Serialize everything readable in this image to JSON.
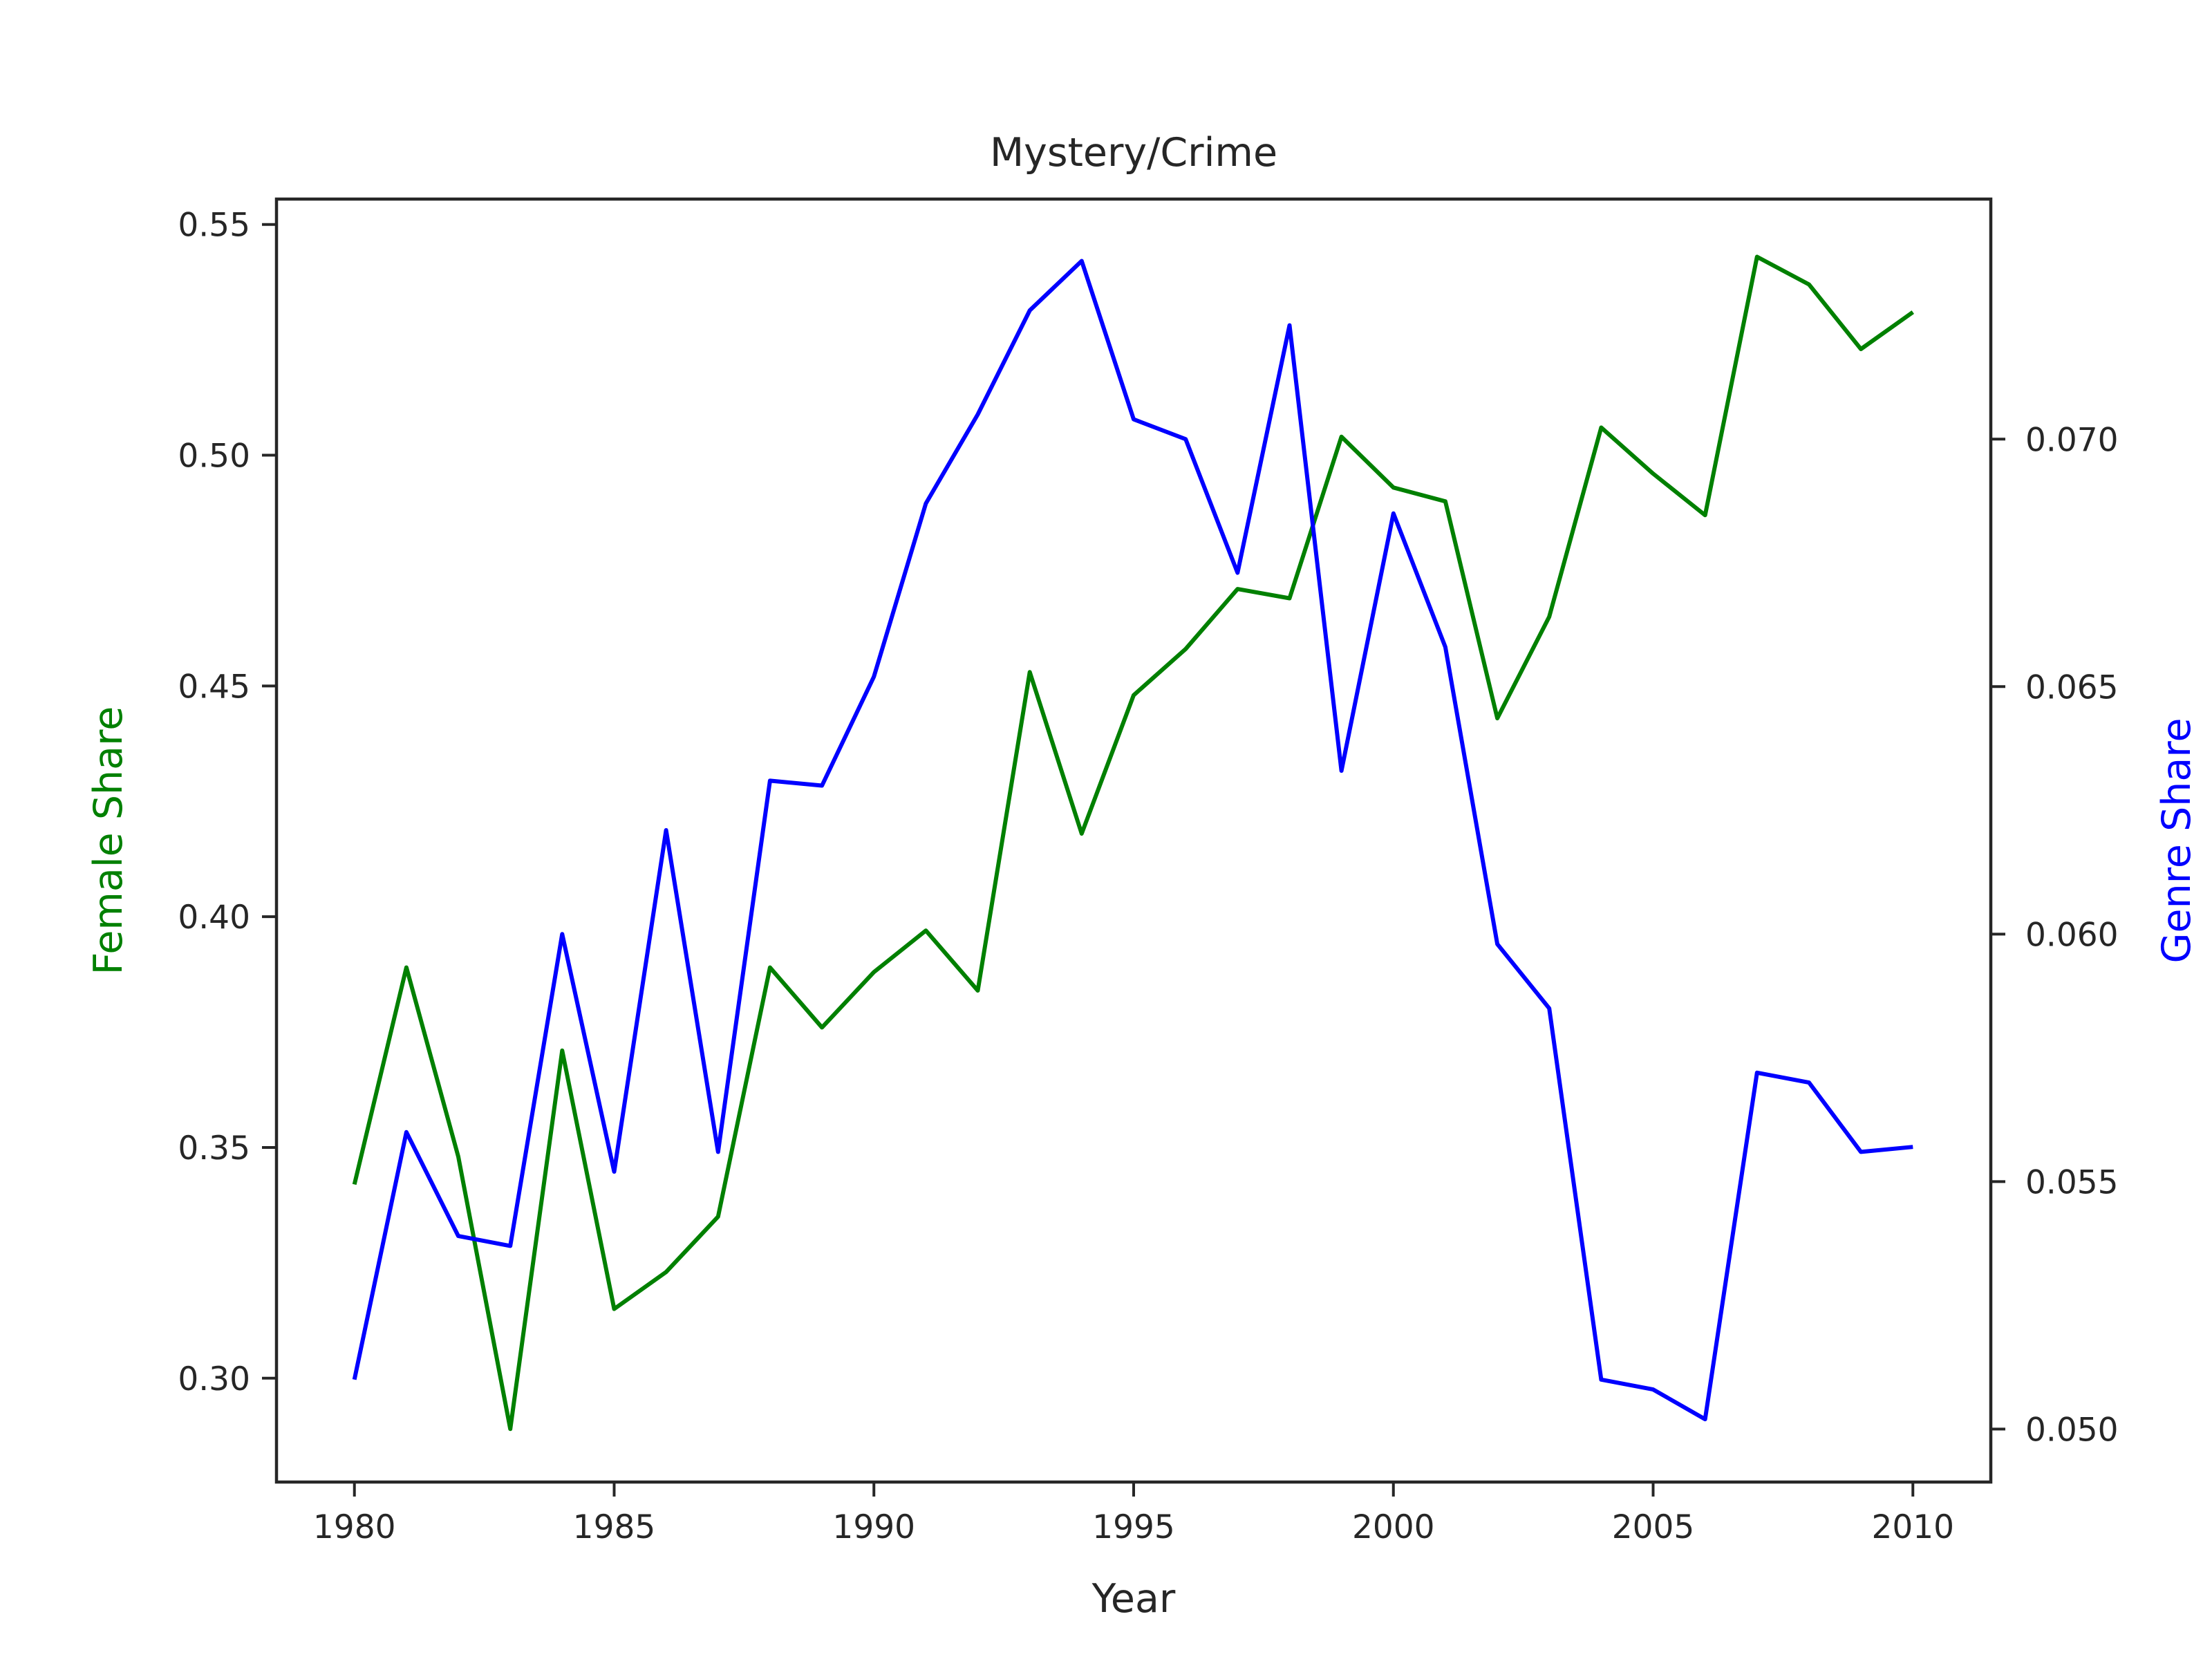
{
  "chart_data": {
    "type": "line",
    "title": "Mystery/Crime",
    "xlabel": "Year",
    "ylabel_left": "Female Share",
    "ylabel_right": "Genre Share",
    "xlim": [
      1978.5,
      2011.5
    ],
    "ylim_left": [
      0.2775,
      0.5555
    ],
    "ylim_right": [
      0.04893,
      0.07485
    ],
    "x_ticks": [
      1980,
      1985,
      1990,
      1995,
      2000,
      2005,
      2010
    ],
    "x_tick_labels": [
      "1980",
      "1985",
      "1990",
      "1995",
      "2000",
      "2005",
      "2010"
    ],
    "y_left_ticks": [
      0.3,
      0.35,
      0.4,
      0.45,
      0.5,
      0.55
    ],
    "y_left_tick_labels": [
      "0.30",
      "0.35",
      "0.40",
      "0.45",
      "0.50",
      "0.55"
    ],
    "y_right_ticks": [
      0.05,
      0.055,
      0.06,
      0.065,
      0.07
    ],
    "y_right_tick_labels": [
      "0.050",
      "0.055",
      "0.060",
      "0.065",
      "0.070"
    ],
    "grid": false,
    "x": [
      1980,
      1981,
      1982,
      1983,
      1984,
      1985,
      1986,
      1987,
      1988,
      1989,
      1990,
      1991,
      1992,
      1993,
      1994,
      1995,
      1996,
      1997,
      1998,
      1999,
      2000,
      2001,
      2002,
      2003,
      2004,
      2005,
      2006,
      2007,
      2008,
      2009,
      2010
    ],
    "series": [
      {
        "axis": "left",
        "color": "#008000",
        "values": [
          0.342,
          0.389,
          0.348,
          0.289,
          0.371,
          0.315,
          0.323,
          0.335,
          0.389,
          0.376,
          0.388,
          0.397,
          0.384,
          0.453,
          0.418,
          0.448,
          0.458,
          0.471,
          0.469,
          0.504,
          0.493,
          0.49,
          0.443,
          0.465,
          0.506,
          0.496,
          0.487,
          0.543,
          0.537,
          0.523,
          0.531
        ]
      },
      {
        "axis": "right",
        "color": "#0000ff",
        "values": [
          0.051,
          0.056,
          0.0539,
          0.0537,
          0.06,
          0.0552,
          0.0621,
          0.0556,
          0.0631,
          0.063,
          0.0652,
          0.0687,
          0.0705,
          0.0726,
          0.0736,
          0.0704,
          0.07,
          0.0673,
          0.0723,
          0.0633,
          0.0685,
          0.0658,
          0.0598,
          0.0585,
          0.051,
          0.0508,
          0.0502,
          0.0572,
          0.057,
          0.0556,
          0.0557
        ]
      }
    ]
  },
  "colors": {
    "left_axis_label": "#008000",
    "right_axis_label": "#0000ff",
    "text": "#262626",
    "frame": "#262626"
  }
}
